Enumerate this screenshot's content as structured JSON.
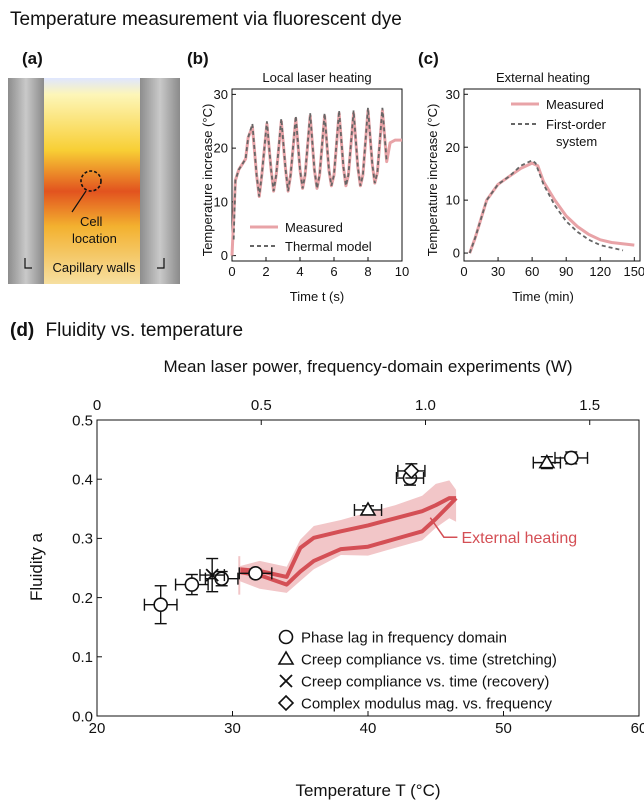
{
  "figure_title": "Temperature measurement via fluorescent dye",
  "colors": {
    "measured": "#e8a3a7",
    "model": "#666666",
    "external": "#d44f55",
    "band": "#f2c6c8",
    "ink": "#111111"
  },
  "panel_a": {
    "label": "(a)",
    "cell_label_line1": "Cell",
    "cell_label_line2": "location",
    "walls_label": "Capillary walls"
  },
  "chart_data": [
    {
      "panel": "(b)",
      "type": "line",
      "title": "Local laser heating",
      "xlabel": "Time t (s)",
      "ylabel": "Temperature increase (°C)",
      "xlim": [
        0,
        10
      ],
      "ylim": [
        -1,
        31
      ],
      "xticks": [
        0,
        2,
        4,
        6,
        8,
        10
      ],
      "yticks": [
        0,
        10,
        20,
        30
      ],
      "legend_position": "bottom-right",
      "series": [
        {
          "name": "Measured",
          "style": "solid",
          "x": [
            0,
            0.2,
            0.4,
            0.6,
            0.8,
            0.95,
            1.2,
            1.45,
            1.6,
            1.75,
            2.05,
            2.3,
            2.45,
            2.6,
            2.9,
            3.15,
            3.3,
            3.45,
            3.75,
            4.0,
            4.15,
            4.3,
            4.6,
            4.85,
            5.0,
            5.15,
            5.45,
            5.7,
            5.85,
            6.0,
            6.3,
            6.55,
            6.7,
            6.85,
            7.15,
            7.4,
            7.55,
            7.7,
            8.0,
            8.25,
            8.4,
            8.55,
            8.85,
            9.1,
            9.3,
            9.6,
            10
          ],
          "y": [
            0,
            14,
            16,
            17,
            18,
            22,
            24,
            15,
            11,
            15,
            24.5,
            16,
            12,
            15,
            25,
            16,
            12,
            15,
            25.5,
            16,
            12.5,
            15,
            26,
            16,
            12.5,
            15,
            26,
            16,
            13,
            15,
            26.5,
            16.5,
            13,
            15,
            26.5,
            16.5,
            13,
            15,
            27,
            17,
            13.5,
            15.5,
            27,
            17.5,
            21,
            21.5,
            21.5
          ]
        },
        {
          "name": "Thermal model",
          "style": "dashed",
          "x": [
            0.1,
            0.2,
            0.4,
            0.6,
            0.8,
            0.95,
            1.2,
            1.45,
            1.6,
            1.75,
            2.05,
            2.3,
            2.45,
            2.6,
            2.9,
            3.15,
            3.3,
            3.45,
            3.75,
            4.0,
            4.15,
            4.3,
            4.6,
            4.85,
            5.0,
            5.15,
            5.45,
            5.7,
            5.85,
            6.0,
            6.3,
            6.55,
            6.7,
            6.85,
            7.15,
            7.4,
            7.55,
            7.7,
            8.0,
            8.25,
            8.4,
            8.55,
            8.85,
            9.1
          ],
          "y": [
            3,
            14,
            16,
            17,
            18,
            22,
            24.5,
            15,
            11,
            15,
            25,
            16,
            12,
            15,
            25.5,
            16,
            12,
            15,
            26,
            16,
            12.5,
            15,
            26.5,
            16,
            12.5,
            15,
            26.5,
            16,
            13,
            15,
            27,
            16.5,
            13,
            15,
            27,
            16.5,
            13,
            15,
            27.5,
            17,
            13.5,
            15.5,
            27.5,
            17.5
          ]
        }
      ]
    },
    {
      "panel": "(c)",
      "type": "line",
      "title": "External heating",
      "xlabel": "Time (min)",
      "ylabel": "Temperature increase (°C)",
      "xlim": [
        0,
        155
      ],
      "ylim": [
        -1.5,
        31
      ],
      "xticks": [
        0,
        30,
        60,
        90,
        120,
        150
      ],
      "yticks": [
        0,
        10,
        20,
        30
      ],
      "legend_position": "top-right",
      "series": [
        {
          "name": "Measured",
          "style": "solid",
          "x": [
            5,
            10,
            20,
            30,
            40,
            50,
            60,
            65,
            70,
            80,
            90,
            100,
            110,
            120,
            130,
            150
          ],
          "y": [
            0,
            3,
            10,
            13,
            14.5,
            16,
            17,
            16.5,
            13.5,
            10,
            7,
            5,
            3.5,
            2.5,
            2,
            1.5
          ]
        },
        {
          "name": "First-order system",
          "style": "dashed",
          "x": [
            5,
            10,
            20,
            30,
            40,
            50,
            60,
            63,
            70,
            80,
            90,
            100,
            110,
            120,
            130,
            140
          ],
          "y": [
            0,
            3,
            10,
            13,
            14.5,
            16.5,
            17.5,
            17,
            13,
            9,
            6,
            4,
            2.5,
            1.5,
            1,
            0.5
          ]
        }
      ]
    },
    {
      "panel": "(d)",
      "type": "scatter",
      "title": "Fluidity vs. temperature",
      "xlabel": "Temperature T (°C)",
      "ylabel": "Fluidity a",
      "x2label": "Mean laser power, frequency-domain experiments (W)",
      "xlim": [
        20,
        60
      ],
      "ylim": [
        0,
        0.5
      ],
      "x2lim": [
        0,
        1.65
      ],
      "xticks": [
        20,
        30,
        40,
        50,
        60
      ],
      "yticks": [
        0,
        0.1,
        0.2,
        0.3,
        0.4,
        0.5
      ],
      "x2ticks": [
        0,
        0.5,
        1.0,
        1.5
      ],
      "legend_position": "bottom-right",
      "series": [
        {
          "name": "Phase lag in frequency domain",
          "marker": "circle",
          "points": [
            {
              "x": 24.7,
              "y": 0.188,
              "xerr": 1.2,
              "yerr": 0.032
            },
            {
              "x": 27.0,
              "y": 0.222,
              "xerr": 1.2,
              "yerr": 0.017
            },
            {
              "x": 29.2,
              "y": 0.232,
              "xerr": 1.2,
              "yerr": 0.012
            },
            {
              "x": 31.7,
              "y": 0.241,
              "xerr": 1.2,
              "yerr": 0.007
            },
            {
              "x": 43.1,
              "y": 0.402,
              "xerr": 1.0,
              "yerr": 0.012
            },
            {
              "x": 55.0,
              "y": 0.436,
              "xerr": 1.2,
              "yerr": 0.01
            }
          ]
        },
        {
          "name": "Creep compliance vs. time (stretching)",
          "marker": "triangle",
          "points": [
            {
              "x": 40.0,
              "y": 0.348,
              "xerr": 1.0,
              "yerr": 0.007
            },
            {
              "x": 53.2,
              "y": 0.428,
              "xerr": 1.0,
              "yerr": 0.01
            }
          ]
        },
        {
          "name": "Creep compliance vs. time (recovery)",
          "marker": "cross",
          "points": [
            {
              "x": 28.5,
              "y": 0.238,
              "xerr": 0.9,
              "yerr": 0.028
            }
          ]
        },
        {
          "name": "Complex modulus mag. vs. frequency",
          "marker": "diamond",
          "points": [
            {
              "x": 43.2,
              "y": 0.414,
              "xerr": 1.0,
              "yerr": 0.012
            }
          ]
        }
      ],
      "band": {
        "name": "External heating",
        "x": [
          30.5,
          32,
          34,
          35,
          36,
          38,
          40,
          42,
          44,
          45,
          46,
          46.5
        ],
        "upper": [
          0.253,
          0.262,
          0.252,
          0.298,
          0.321,
          0.331,
          0.344,
          0.356,
          0.372,
          0.392,
          0.398,
          0.382
        ],
        "lower": [
          0.228,
          0.215,
          0.208,
          0.228,
          0.248,
          0.272,
          0.271,
          0.284,
          0.297,
          0.318,
          0.334,
          0.328
        ],
        "line_upper": [
          0.248,
          0.245,
          0.235,
          0.284,
          0.301,
          0.312,
          0.322,
          0.334,
          0.346,
          0.356,
          0.368,
          0.368
        ],
        "line_lower": [
          0.243,
          0.238,
          0.222,
          0.244,
          0.262,
          0.282,
          0.286,
          0.299,
          0.312,
          0.333,
          0.356,
          0.368
        ]
      }
    }
  ]
}
